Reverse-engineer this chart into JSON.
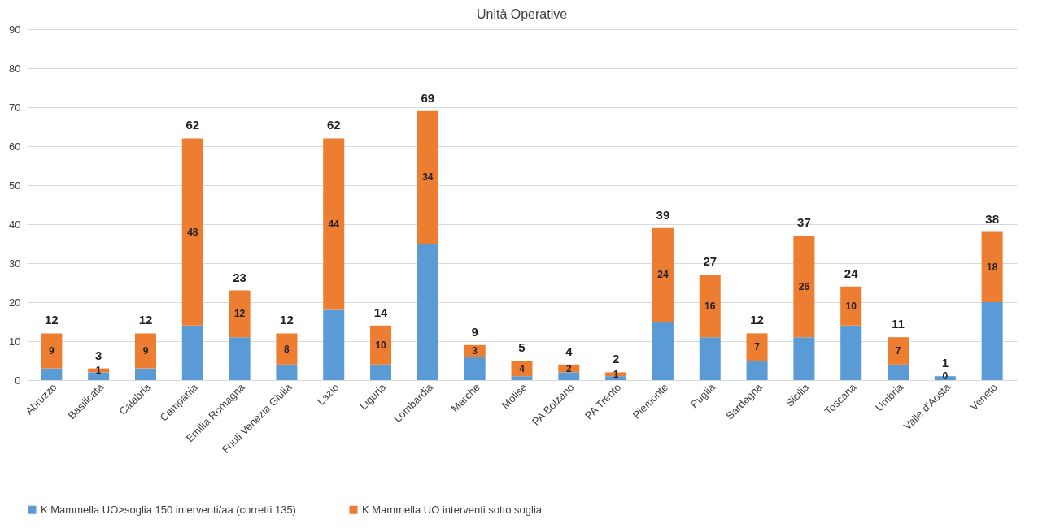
{
  "chart_data": {
    "type": "bar",
    "title": "Unità Operative",
    "stacked": true,
    "categories": [
      "Abruzzo",
      "Basilicata",
      "Calabria",
      "Campania",
      "Emilia Romagna",
      "Friuli Venezia Giulia",
      "Lazio",
      "Liguria",
      "Lombardia",
      "Marche",
      "Molise",
      "PA Bolzano",
      "PA Trento",
      "Piemonte",
      "Puglia",
      "Sardegna",
      "Sicilia",
      "Toscana",
      "Umbria",
      "Valle d'Aosta",
      "Veneto"
    ],
    "series": [
      {
        "name": "K Mammella  UO>soglia 150 interventi/aa (corretti 135)",
        "color": "#5b9bd5",
        "values": [
          3,
          2,
          3,
          14,
          11,
          4,
          18,
          4,
          35,
          6,
          1,
          2,
          1,
          15,
          11,
          5,
          11,
          14,
          4,
          1,
          20
        ]
      },
      {
        "name": "K Mammella UO interventi sotto soglia",
        "color": "#ed7d31",
        "values": [
          9,
          1,
          9,
          48,
          12,
          8,
          44,
          10,
          34,
          3,
          4,
          2,
          1,
          24,
          16,
          7,
          26,
          10,
          7,
          0,
          18
        ],
        "value_labels": [
          "9",
          "1",
          "9",
          "48",
          "12",
          "8",
          "44",
          "10",
          "34",
          "3",
          "4",
          "2",
          "1",
          "24",
          "16",
          "7",
          "26",
          "10",
          "7",
          "0",
          "18"
        ]
      }
    ],
    "totals": [
      "12",
      "3",
      "12",
      "62",
      "23",
      "12",
      "62",
      "14",
      "69",
      "9",
      "5",
      "4",
      "2",
      "39",
      "27",
      "12",
      "37",
      "24",
      "11",
      "1",
      "38"
    ],
    "ylim": [
      0,
      90
    ],
    "yticks": [
      0,
      10,
      20,
      30,
      40,
      50,
      60,
      70,
      80,
      90
    ],
    "grid": "y",
    "legend": "bottom"
  }
}
